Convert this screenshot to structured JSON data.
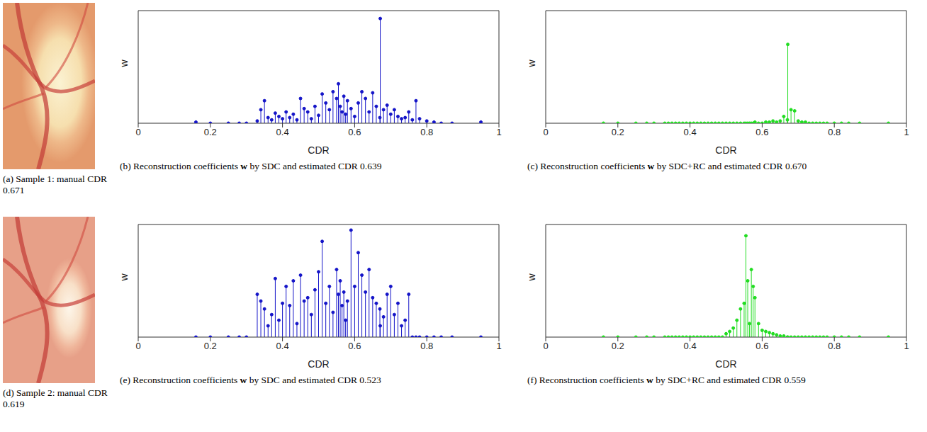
{
  "image_panels": [
    {
      "caption": "(a) Sample 1: manual CDR 0.671"
    },
    {
      "caption": "(d) Sample 2: manual CDR 0.619"
    }
  ],
  "chart_data": [
    {
      "type": "stem",
      "title": "(b) Reconstruction coefficients w by SDC and estimated CDR 0.639",
      "x_label": "CDR",
      "y_label": "w",
      "color": "#1414c8",
      "marker": "circle",
      "xlim": [
        0,
        1
      ],
      "xticks": [
        0,
        0.2,
        0.4,
        0.6,
        0.8,
        1
      ],
      "ylim": [
        0,
        1
      ],
      "tick_labels": "x",
      "x": [
        0.16,
        0.2,
        0.25,
        0.28,
        0.3,
        0.33,
        0.34,
        0.35,
        0.36,
        0.37,
        0.38,
        0.39,
        0.4,
        0.41,
        0.42,
        0.43,
        0.44,
        0.45,
        0.46,
        0.47,
        0.48,
        0.49,
        0.5,
        0.51,
        0.52,
        0.53,
        0.54,
        0.55,
        0.555,
        0.56,
        0.565,
        0.57,
        0.575,
        0.58,
        0.59,
        0.6,
        0.61,
        0.62,
        0.63,
        0.64,
        0.65,
        0.66,
        0.67,
        0.671,
        0.68,
        0.69,
        0.7,
        0.71,
        0.72,
        0.73,
        0.74,
        0.75,
        0.76,
        0.77,
        0.78,
        0.8,
        0.82,
        0.84,
        0.87,
        0.95
      ],
      "values": [
        0.01,
        0,
        0,
        0,
        0,
        0.02,
        0.12,
        0.2,
        0.05,
        0.03,
        0.09,
        0.06,
        0.04,
        0.1,
        0.05,
        0.08,
        0.03,
        0.22,
        0.13,
        0.1,
        0.04,
        0.15,
        0.07,
        0.26,
        0.18,
        0.12,
        0.28,
        0.22,
        0.35,
        0.15,
        0.1,
        0.24,
        0.08,
        0.2,
        0.13,
        0.06,
        0.18,
        0.28,
        0.22,
        0.1,
        0.27,
        0.15,
        0.05,
        0.93,
        0.12,
        0.16,
        0.08,
        0.12,
        0.06,
        0.04,
        0.05,
        0.1,
        0.03,
        0.2,
        0.04,
        0.02,
        0.01,
        0,
        0,
        0.01
      ]
    },
    {
      "type": "stem",
      "title": "(c) Reconstruction coefficients w by SDC+RC and estimated CDR 0.670",
      "x_label": "CDR",
      "y_label": "w",
      "color": "#22dd22",
      "marker": "circle",
      "xlim": [
        0,
        1
      ],
      "xticks": [
        0,
        0.2,
        0.4,
        0.6,
        0.8,
        1
      ],
      "ylim": [
        0,
        1
      ],
      "tick_labels": "x",
      "x": [
        0.16,
        0.2,
        0.25,
        0.28,
        0.3,
        0.33,
        0.34,
        0.35,
        0.36,
        0.37,
        0.38,
        0.39,
        0.4,
        0.41,
        0.42,
        0.43,
        0.44,
        0.45,
        0.46,
        0.47,
        0.48,
        0.49,
        0.5,
        0.51,
        0.52,
        0.53,
        0.54,
        0.55,
        0.555,
        0.56,
        0.565,
        0.57,
        0.575,
        0.58,
        0.59,
        0.6,
        0.61,
        0.62,
        0.63,
        0.64,
        0.65,
        0.66,
        0.67,
        0.671,
        0.68,
        0.69,
        0.7,
        0.71,
        0.72,
        0.73,
        0.74,
        0.75,
        0.76,
        0.77,
        0.78,
        0.8,
        0.82,
        0.84,
        0.87,
        0.95
      ],
      "values": [
        0,
        0,
        0,
        0,
        0,
        0,
        0,
        0,
        0,
        0,
        0,
        0,
        0,
        0,
        0,
        0,
        0,
        0,
        0,
        0,
        0,
        0,
        0,
        0,
        0,
        0,
        0,
        0,
        0,
        0,
        0,
        0,
        0,
        0.01,
        0,
        0,
        0.01,
        0.01,
        0.02,
        0.01,
        0.02,
        0.06,
        0.03,
        0.7,
        0.12,
        0.11,
        0.02,
        0.01,
        0.01,
        0,
        0,
        0,
        0,
        0,
        0,
        0,
        0,
        0,
        0,
        0
      ]
    },
    {
      "type": "stem",
      "title": "(e) Reconstruction coefficients w by SDC and estimated CDR 0.523",
      "x_label": "CDR",
      "y_label": "w",
      "color": "#1414c8",
      "marker": "circle",
      "xlim": [
        0,
        1
      ],
      "xticks": [
        0,
        0.2,
        0.4,
        0.6,
        0.8,
        1
      ],
      "ylim": [
        0,
        1
      ],
      "tick_labels": "x",
      "x": [
        0.16,
        0.2,
        0.25,
        0.28,
        0.3,
        0.33,
        0.34,
        0.35,
        0.36,
        0.37,
        0.38,
        0.39,
        0.4,
        0.41,
        0.42,
        0.43,
        0.44,
        0.45,
        0.46,
        0.47,
        0.48,
        0.49,
        0.5,
        0.51,
        0.52,
        0.53,
        0.54,
        0.55,
        0.555,
        0.56,
        0.565,
        0.57,
        0.575,
        0.58,
        0.59,
        0.6,
        0.61,
        0.62,
        0.63,
        0.64,
        0.65,
        0.66,
        0.67,
        0.671,
        0.68,
        0.69,
        0.7,
        0.71,
        0.72,
        0.73,
        0.74,
        0.75,
        0.76,
        0.77,
        0.78,
        0.8,
        0.82,
        0.84,
        0.87,
        0.95
      ],
      "values": [
        0,
        0,
        0,
        0,
        0,
        0.38,
        0.32,
        0.25,
        0.1,
        0.2,
        0.52,
        0.15,
        0.3,
        0.45,
        0.28,
        0.5,
        0.12,
        0.55,
        0.32,
        0.35,
        0.2,
        0.42,
        0.58,
        0.85,
        0.3,
        0.45,
        0.22,
        0.6,
        0.38,
        0.5,
        0.28,
        0.4,
        0.15,
        0.32,
        0.95,
        0.45,
        0.75,
        0.55,
        0.4,
        0.6,
        0.35,
        0.3,
        0.25,
        0.1,
        0.18,
        0.38,
        0.45,
        0.2,
        0.3,
        0.1,
        0.15,
        0.38,
        0,
        0,
        0,
        0,
        0,
        0,
        0,
        0
      ]
    },
    {
      "type": "stem",
      "title": "(f) Reconstruction coefficients w by SDC+RC and estimated CDR 0.559",
      "x_label": "CDR",
      "y_label": "w",
      "color": "#22dd22",
      "marker": "circle",
      "xlim": [
        0,
        1
      ],
      "xticks": [
        0,
        0.2,
        0.4,
        0.6,
        0.8,
        1
      ],
      "ylim": [
        0,
        1
      ],
      "tick_labels": "x",
      "x": [
        0.16,
        0.2,
        0.25,
        0.28,
        0.3,
        0.33,
        0.34,
        0.35,
        0.36,
        0.37,
        0.38,
        0.39,
        0.4,
        0.41,
        0.42,
        0.43,
        0.44,
        0.45,
        0.46,
        0.47,
        0.48,
        0.49,
        0.5,
        0.51,
        0.52,
        0.53,
        0.54,
        0.55,
        0.555,
        0.56,
        0.565,
        0.57,
        0.575,
        0.58,
        0.59,
        0.6,
        0.61,
        0.62,
        0.63,
        0.64,
        0.65,
        0.66,
        0.67,
        0.671,
        0.68,
        0.69,
        0.7,
        0.71,
        0.72,
        0.73,
        0.74,
        0.75,
        0.76,
        0.77,
        0.78,
        0.8,
        0.82,
        0.84,
        0.87,
        0.95
      ],
      "values": [
        0,
        0,
        0,
        0,
        0,
        0,
        0,
        0,
        0,
        0,
        0,
        0,
        0,
        0,
        0,
        0,
        0,
        0,
        0,
        0,
        0,
        0,
        0.03,
        0.05,
        0.08,
        0.15,
        0.25,
        0.3,
        0.9,
        0.5,
        0.12,
        0.6,
        0.45,
        0.35,
        0.12,
        0.06,
        0.05,
        0.04,
        0.03,
        0.02,
        0.01,
        0.01,
        0,
        0,
        0,
        0,
        0,
        0,
        0,
        0,
        0,
        0,
        0,
        0,
        0,
        0,
        0,
        0,
        0,
        0
      ]
    }
  ]
}
